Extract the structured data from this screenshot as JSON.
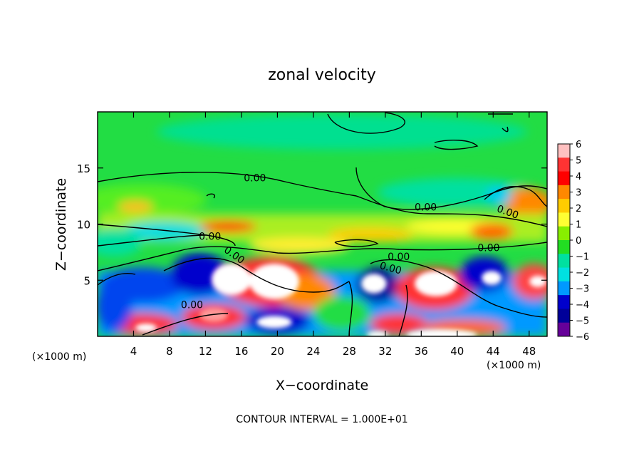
{
  "chart_data": {
    "type": "heatmap",
    "title": "zonal velocity",
    "xlabel": "X−coordinate",
    "ylabel": "Z−coordinate",
    "x_unit_left": "(×1000 m)",
    "x_unit_right": "(×1000 m)",
    "footer": "CONTOUR INTERVAL = 1.000E+01",
    "xlim": [
      0,
      50
    ],
    "ylim": [
      0,
      20
    ],
    "x_ticks": [
      4,
      8,
      12,
      16,
      20,
      24,
      28,
      32,
      36,
      40,
      44,
      48
    ],
    "y_ticks": [
      5,
      10,
      15
    ],
    "colorbar": {
      "labels": [
        "6",
        "5",
        "4",
        "3",
        "2",
        "1",
        "0",
        "−1",
        "−2",
        "−3",
        "−4",
        "−5",
        "−6"
      ],
      "colors": [
        "#ffc0c0",
        "#ff3333",
        "#ff0000",
        "#ff8800",
        "#ffcc00",
        "#ffff33",
        "#88ee00",
        "#22dd22",
        "#00e0a0",
        "#00e0e0",
        "#0099ff",
        "#0000cc",
        "#000099",
        "#660099"
      ]
    },
    "contour_labels": [
      {
        "text": "0.00",
        "x": 15,
        "y": 7,
        "angle": 35
      },
      {
        "text": "0.00",
        "x": 10.5,
        "y": 2.5,
        "angle": 0
      },
      {
        "text": "0.00",
        "x": 12.5,
        "y": 8.6,
        "angle": 0
      },
      {
        "text": "0.00",
        "x": 17.5,
        "y": 13.8,
        "angle": 0
      },
      {
        "text": "0.00",
        "x": 36.5,
        "y": 11.2,
        "angle": 0
      },
      {
        "text": "0.00",
        "x": 45.5,
        "y": 10.8,
        "angle": 20
      },
      {
        "text": "0.00",
        "x": 43.5,
        "y": 7.6,
        "angle": 0
      },
      {
        "text": "0.00",
        "x": 33.5,
        "y": 6.8,
        "angle": 0
      },
      {
        "text": "0.00",
        "x": 32.5,
        "y": 5.8,
        "angle": 15
      }
    ]
  }
}
